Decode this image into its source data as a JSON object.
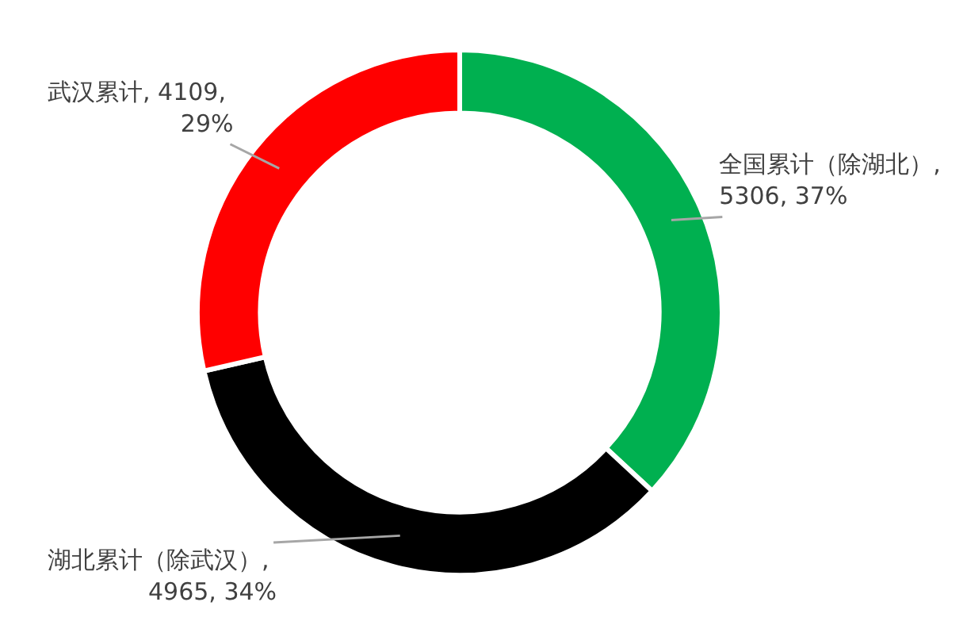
{
  "chart_data": {
    "type": "donut",
    "categories": [
      "全国累计（除湖北）",
      "湖北累计（除武汉）",
      "武汉累计"
    ],
    "values": [
      5306,
      4965,
      4109
    ],
    "colors": [
      "#00b050",
      "#000000",
      "#ff0000"
    ],
    "value_labels": [
      ", 5306, 37%",
      ", 4965, 34%",
      ", 4109, 29%"
    ],
    "legend": false
  }
}
